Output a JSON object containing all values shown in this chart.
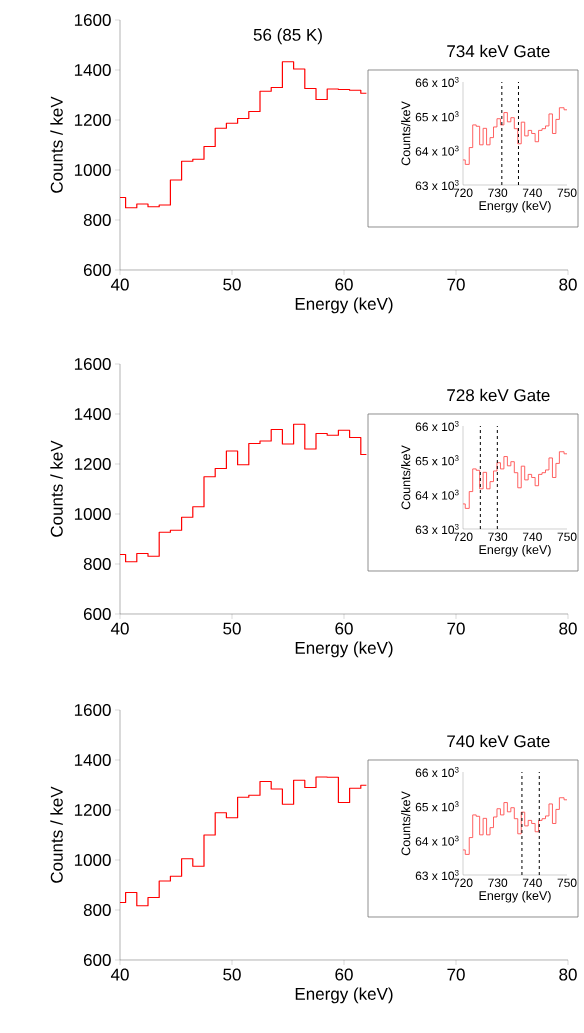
{
  "chart_data": [
    {
      "type": "step",
      "xlabel": "Energy (keV)",
      "ylabel": "Counts / keV",
      "x": [
        40,
        41,
        42,
        43,
        44,
        45,
        46,
        47,
        48,
        49,
        50,
        51,
        52,
        53,
        54,
        55,
        56,
        57,
        58,
        59,
        60,
        61,
        62
      ],
      "values": [
        890,
        849,
        864,
        853,
        860,
        960,
        1035,
        1043,
        1094,
        1167,
        1187,
        1206,
        1234,
        1315,
        1330,
        1433,
        1404,
        1326,
        1282,
        1324,
        1322,
        1319,
        1307
      ],
      "color": "#ff0000",
      "xlim": [
        40,
        80
      ],
      "ylim": [
        600,
        1600
      ],
      "xticks": [
        40,
        50,
        60,
        70,
        80
      ],
      "yticks": [
        600,
        800,
        1000,
        1200,
        1400,
        1600
      ],
      "annotations": [
        {
          "text": "56 (85 K)",
          "x": 55,
          "y": 1433
        }
      ]
    },
    {
      "type": "step",
      "title": "734 keV Gate",
      "xlabel": "Energy (keV)",
      "ylabel": "Counts/keV",
      "x": [
        720,
        721.3,
        722.3,
        723.3,
        724.3,
        725.3,
        726.3,
        727.3,
        728.3,
        729.3,
        730.3,
        731.3,
        732.3,
        733.3,
        734.3,
        735.3,
        736.3,
        737.3,
        738.3,
        739.3,
        740.3,
        741.3,
        742.3,
        743.3,
        744.3,
        745.3,
        746.3,
        747.3,
        748.3,
        750
      ],
      "values": [
        63730,
        63600,
        64090,
        64750,
        64710,
        64170,
        64650,
        64170,
        64380,
        64690,
        64930,
        64750,
        65110,
        64840,
        64960,
        64640,
        64200,
        64830,
        64430,
        64590,
        64500,
        64260,
        64590,
        64640,
        64720,
        65070,
        64500,
        64910,
        65250,
        65190
      ],
      "color": "#ff5050",
      "xlim": [
        720,
        750
      ],
      "ylim": [
        63000,
        66000
      ],
      "xticks": [
        720,
        730,
        740,
        750
      ],
      "yticks": [
        {
          "value": 63000,
          "label": "63 x 10$^{3}$"
        },
        {
          "value": 64000,
          "label": "64 x 10$^{3}$"
        },
        {
          "value": 65000,
          "label": "65 x 10$^{3}$"
        },
        {
          "value": 66000,
          "label": "66 x 10$^{3}$"
        }
      ],
      "ref_lines": [
        {
          "axis": "x",
          "value": 731.2,
          "color": "#000000",
          "line_style": "dashed"
        },
        {
          "axis": "x",
          "value": 736,
          "color": "#000000",
          "line_style": "dashed"
        }
      ]
    },
    {
      "type": "step",
      "xlabel": "Energy (keV)",
      "ylabel": "Counts / keV",
      "x": [
        40,
        41,
        42,
        43,
        44,
        45,
        46,
        47,
        48,
        49,
        50,
        51,
        52,
        53,
        54,
        55,
        56,
        57,
        58,
        59,
        60,
        61,
        62
      ],
      "values": [
        838,
        809,
        842,
        831,
        927,
        935,
        987,
        1029,
        1149,
        1182,
        1252,
        1197,
        1282,
        1292,
        1338,
        1280,
        1359,
        1260,
        1322,
        1315,
        1335,
        1306,
        1238
      ],
      "color": "#ff0000",
      "xlim": [
        40,
        80
      ],
      "ylim": [
        600,
        1600
      ],
      "xticks": [
        40,
        50,
        60,
        70,
        80
      ],
      "yticks": [
        600,
        800,
        1000,
        1200,
        1400,
        1600
      ]
    },
    {
      "type": "step",
      "title": "728 keV Gate",
      "xlabel": "Energy (keV)",
      "ylabel": "Counts/keV",
      "x": [
        720,
        721.3,
        722.3,
        723.3,
        724.3,
        725.3,
        726.3,
        727.3,
        728.3,
        729.3,
        730.3,
        731.3,
        732.3,
        733.3,
        734.3,
        735.3,
        736.3,
        737.3,
        738.3,
        739.3,
        740.3,
        741.3,
        742.3,
        743.3,
        744.3,
        745.3,
        746.3,
        747.3,
        748.3,
        750
      ],
      "values": [
        63730,
        63600,
        64090,
        64750,
        64710,
        64170,
        64650,
        64170,
        64380,
        64690,
        64930,
        64750,
        65110,
        64840,
        64960,
        64640,
        64200,
        64830,
        64430,
        64590,
        64500,
        64260,
        64590,
        64640,
        64720,
        65070,
        64500,
        64910,
        65250,
        65190
      ],
      "color": "#ff5050",
      "xlim": [
        720,
        750
      ],
      "ylim": [
        63000,
        66000
      ],
      "xticks": [
        720,
        730,
        740,
        750
      ],
      "yticks": [
        {
          "value": 63000,
          "label": "63 x 10$^{3}$"
        },
        {
          "value": 64000,
          "label": "64 x 10$^{3}$"
        },
        {
          "value": 65000,
          "label": "65 x 10$^{3}$"
        },
        {
          "value": 66000,
          "label": "66 x 10$^{3}$"
        }
      ],
      "ref_lines": [
        {
          "axis": "x",
          "value": 725,
          "color": "#000000",
          "line_style": "dashed"
        },
        {
          "axis": "x",
          "value": 729.9,
          "color": "#000000",
          "line_style": "dashed"
        }
      ]
    },
    {
      "type": "step",
      "xlabel": "Energy (keV)",
      "ylabel": "Counts / keV",
      "x": [
        40,
        41,
        42,
        43,
        44,
        45,
        46,
        47,
        48,
        49,
        50,
        51,
        52,
        53,
        54,
        55,
        56,
        57,
        58,
        59,
        60,
        61,
        62
      ],
      "values": [
        830,
        870,
        817,
        850,
        916,
        935,
        1005,
        975,
        1100,
        1189,
        1169,
        1251,
        1259,
        1314,
        1284,
        1223,
        1319,
        1290,
        1332,
        1331,
        1230,
        1287,
        1299
      ],
      "color": "#ff0000",
      "xlim": [
        40,
        80
      ],
      "ylim": [
        600,
        1600
      ],
      "xticks": [
        40,
        50,
        60,
        70,
        80
      ],
      "yticks": [
        600,
        800,
        1000,
        1200,
        1400,
        1600
      ]
    },
    {
      "type": "step",
      "title": "740 keV Gate",
      "xlabel": "Energy (keV)",
      "ylabel": "Counts/keV",
      "x": [
        720,
        721.3,
        722.3,
        723.3,
        724.3,
        725.3,
        726.3,
        727.3,
        728.3,
        729.3,
        730.3,
        731.3,
        732.3,
        733.3,
        734.3,
        735.3,
        736.3,
        737.3,
        738.3,
        739.3,
        740.3,
        741.3,
        742.3,
        743.3,
        744.3,
        745.3,
        746.3,
        747.3,
        748.3,
        750
      ],
      "values": [
        63730,
        63600,
        64090,
        64750,
        64710,
        64170,
        64650,
        64170,
        64380,
        64690,
        64930,
        64750,
        65110,
        64840,
        64960,
        64640,
        64200,
        64830,
        64430,
        64590,
        64500,
        64260,
        64590,
        64640,
        64720,
        65070,
        64500,
        64910,
        65250,
        65190
      ],
      "color": "#ff5050",
      "xlim": [
        720,
        750
      ],
      "ylim": [
        63000,
        66000
      ],
      "xticks": [
        720,
        730,
        740,
        750
      ],
      "yticks": [
        {
          "value": 63000,
          "label": "63 x 10$^{3}$"
        },
        {
          "value": 64000,
          "label": "64 x 10$^{3}$"
        },
        {
          "value": 65000,
          "label": "65 x 10$^{3}$"
        },
        {
          "value": 66000,
          "label": "66 x 10$^{3}$"
        }
      ],
      "ref_lines": [
        {
          "axis": "x",
          "value": 737,
          "color": "#000000",
          "line_style": "dashed"
        },
        {
          "axis": "x",
          "value": 742,
          "color": "#000000",
          "line_style": "dashed"
        }
      ]
    }
  ]
}
